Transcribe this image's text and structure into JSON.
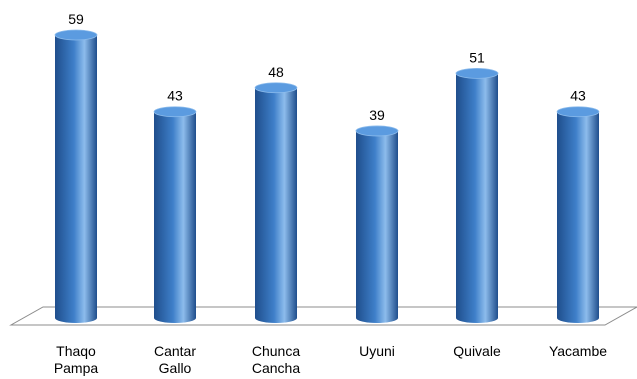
{
  "chart_data": {
    "type": "bar",
    "style": "3d-cylinder",
    "categories": [
      [
        "Thaqo",
        "Pampa"
      ],
      [
        "Cantar",
        "Gallo"
      ],
      [
        "Chunca",
        "Cancha"
      ],
      [
        "Uyuni"
      ],
      [
        "Quivale"
      ],
      [
        "Yacambe"
      ]
    ],
    "values": [
      59,
      43,
      48,
      39,
      51,
      43
    ],
    "data_labels": [
      "59",
      "43",
      "48",
      "39",
      "51",
      "43"
    ],
    "title": "",
    "xlabel": "",
    "ylabel": "",
    "ylim": [
      0,
      60
    ],
    "grid": false,
    "legend": "none",
    "colors": {
      "bar_dark": "#1f4e8c",
      "bar_mid": "#3e7fc9",
      "bar_light": "#8dbcec",
      "bar_top": "#5b9be0",
      "floor_stroke": "#8c8c8c"
    }
  }
}
